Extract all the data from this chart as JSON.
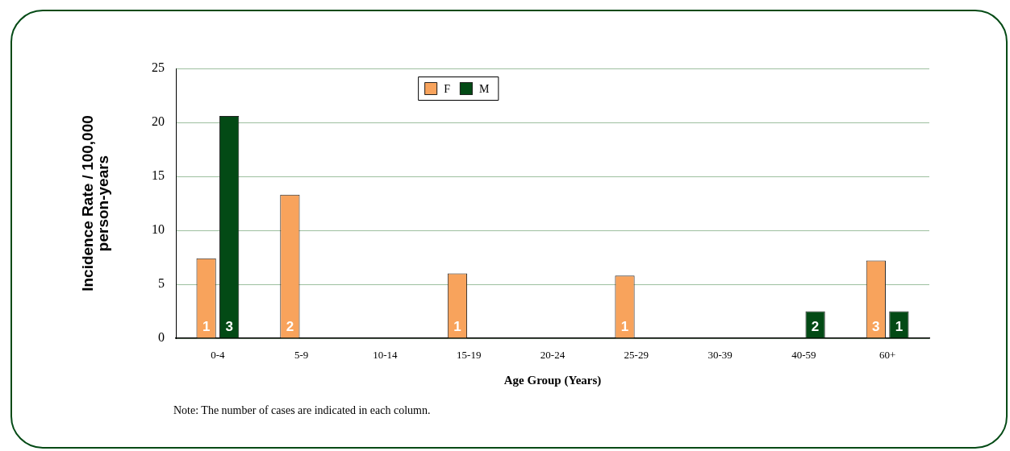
{
  "chart_data": {
    "type": "bar",
    "xlabel": "Age Group (Years)",
    "ylabel": "Incidence Rate / 100,000 person-years",
    "categories": [
      "0-4",
      "5-9",
      "10-14",
      "15-19",
      "20-24",
      "25-29",
      "30-39",
      "40-59",
      "60+"
    ],
    "series": [
      {
        "name": "F",
        "color": "#f8a35c",
        "values": [
          7.4,
          13.3,
          null,
          6.0,
          null,
          5.8,
          null,
          null,
          7.2
        ]
      },
      {
        "name": "M",
        "color": "#034a15",
        "values": [
          20.6,
          null,
          null,
          null,
          null,
          null,
          null,
          2.5,
          2.5
        ]
      }
    ],
    "ylim": [
      0,
      25
    ],
    "yticks": [
      0,
      5,
      10,
      15,
      20,
      25
    ],
    "grid": "y",
    "legend": "top",
    "annotations": [
      {
        "text": "1",
        "x": "0-4",
        "y": 1
      },
      {
        "text": "3",
        "x": "0-4",
        "y": 1
      },
      {
        "text": "2",
        "x": "5-9",
        "y": 1
      },
      {
        "text": "1",
        "x": "15-19",
        "y": 1
      },
      {
        "text": "1",
        "x": "25-29",
        "y": 1
      },
      {
        "text": "2",
        "x": "40-59",
        "y": 1
      },
      {
        "text": "3",
        "x": "60+",
        "y": 1
      },
      {
        "text": "1",
        "x": "60+",
        "y": 1
      },
      "Note: The number of cases are indicated in each column."
    ]
  }
}
